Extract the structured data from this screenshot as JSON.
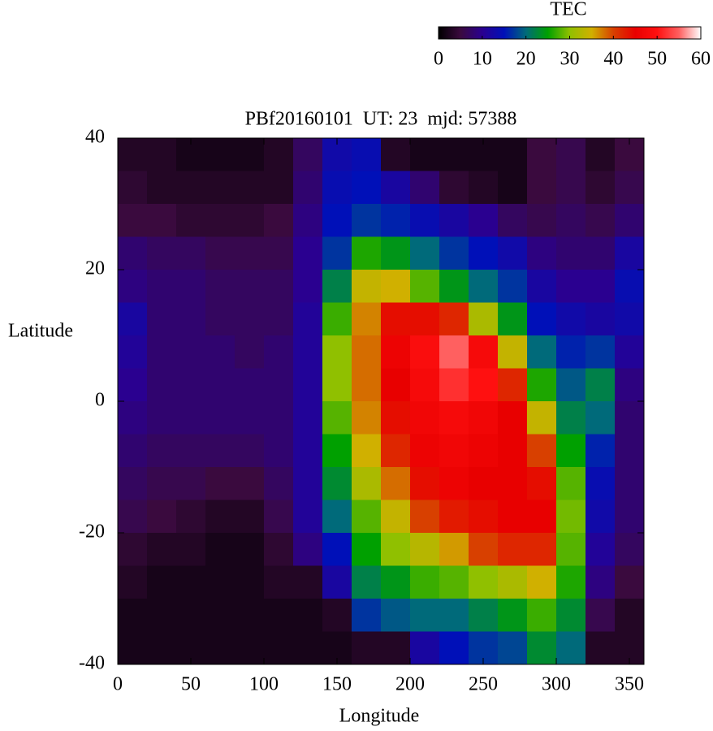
{
  "chart_data": {
    "type": "heatmap",
    "title": "PBf20160101  UT: 23  mjd: 57388",
    "xlabel": "Longitude",
    "ylabel": "Latitude",
    "colorbar_label": "TEC",
    "xlim": [
      0,
      360
    ],
    "xticks": [
      0,
      50,
      100,
      150,
      200,
      250,
      300,
      350
    ],
    "ylim": [
      -40,
      40
    ],
    "yticks": [
      -40,
      -20,
      0,
      20,
      40
    ],
    "zlim": [
      0,
      60
    ],
    "zticks": [
      0,
      10,
      20,
      30,
      40,
      50,
      60
    ],
    "colors": [
      "#000000",
      "#3a0a3e",
      "#2a0090",
      "#0010b8",
      "#006a7a",
      "#00a000",
      "#90c000",
      "#d0b000",
      "#d84000",
      "#e80000",
      "#ff1010",
      "#ff6060",
      "#ffffff"
    ],
    "x": [
      10,
      30,
      50,
      70,
      90,
      110,
      130,
      150,
      170,
      190,
      210,
      230,
      250,
      270,
      290,
      310,
      330,
      350
    ],
    "y": [
      37.5,
      32.5,
      27.5,
      22.5,
      17.5,
      12.5,
      7.5,
      2.5,
      -2.5,
      -7.5,
      -12.5,
      -17.5,
      -22.5,
      -27.5,
      -32.5,
      -37.5
    ],
    "z": [
      [
        3,
        4,
        5,
        8,
        9,
        12,
        11,
        10,
        9,
        8,
        7,
        6,
        4,
        3,
        2,
        2
      ],
      [
        3,
        3,
        5,
        7,
        8,
        8,
        8,
        8,
        8,
        7,
        6,
        5,
        3,
        2,
        2,
        2
      ],
      [
        2,
        3,
        4,
        7,
        8,
        8,
        8,
        8,
        8,
        7,
        6,
        4,
        3,
        2,
        2,
        2
      ],
      [
        2,
        3,
        4,
        6,
        7,
        7,
        8,
        8,
        8,
        7,
        5,
        3,
        2,
        2,
        2,
        2
      ],
      [
        2,
        3,
        4,
        6,
        7,
        7,
        7,
        8,
        8,
        7,
        5,
        3,
        2,
        2,
        2,
        2
      ],
      [
        3,
        3,
        5,
        6,
        7,
        7,
        8,
        8,
        8,
        8,
        7,
        6,
        4,
        3,
        2,
        2
      ],
      [
        7,
        8,
        9,
        10,
        10,
        11,
        11,
        11,
        11,
        11,
        11,
        11,
        9,
        3,
        2,
        2
      ],
      [
        13,
        14,
        15,
        17,
        22,
        27,
        30,
        30,
        28,
        25,
        23,
        20,
        15,
        12,
        3,
        2
      ],
      [
        14,
        15,
        17,
        26,
        34,
        37,
        38,
        38,
        37,
        35,
        32,
        28,
        25,
        22,
        17,
        3
      ],
      [
        3,
        12,
        16,
        24,
        35,
        44,
        46,
        45,
        44,
        42,
        38,
        34,
        30,
        24,
        19,
        3
      ],
      [
        2,
        8,
        14,
        20,
        28,
        44,
        49,
        48,
        47,
        46,
        44,
        40,
        33,
        27,
        20,
        12
      ],
      [
        2,
        4,
        12,
        17,
        24,
        42,
        55,
        52,
        48,
        47,
        46,
        43,
        36,
        28,
        20,
        15
      ],
      [
        2,
        3,
        10,
        15,
        20,
        32,
        48,
        50,
        47,
        46,
        45,
        44,
        40,
        30,
        22,
        17
      ],
      [
        2,
        2,
        7,
        13,
        17,
        24,
        34,
        42,
        45,
        45,
        45,
        45,
        42,
        32,
        24,
        18
      ],
      [
        5,
        5,
        6,
        9,
        12,
        15,
        20,
        26,
        34,
        40,
        44,
        45,
        42,
        35,
        27,
        23
      ],
      [
        6,
        6,
        7,
        8,
        10,
        13,
        16,
        19,
        22,
        25,
        28,
        29,
        28,
        26,
        23,
        20
      ],
      [
        3,
        4,
        6,
        8,
        10,
        12,
        17,
        22,
        20,
        16,
        14,
        13,
        11,
        9,
        6,
        3
      ],
      [
        5,
        6,
        8,
        12,
        14,
        13,
        11,
        9,
        8,
        8,
        8,
        8,
        7,
        5,
        3,
        3
      ]
    ]
  }
}
